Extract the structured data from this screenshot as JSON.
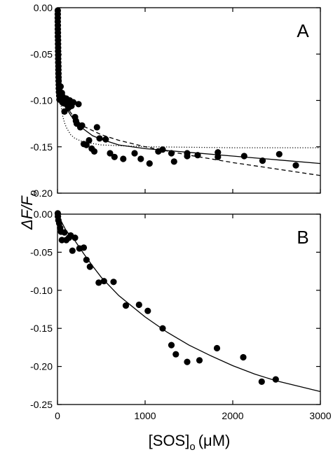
{
  "chart_data": [
    {
      "type": "scatter",
      "panel_label": "A",
      "xlim": [
        0,
        3000
      ],
      "ylim": [
        -0.2,
        0.0
      ],
      "x_ticks": [
        0,
        1000,
        2000,
        3000
      ],
      "y_ticks": [
        0.0,
        -0.05,
        -0.1,
        -0.15,
        -0.2
      ],
      "y_tick_labels": [
        "0.00",
        "-0.05",
        "-0.10",
        "-0.15",
        "-0.20"
      ],
      "x_tick_labels_shown": false,
      "series": [
        {
          "marker": "filled-circle",
          "points": [
            [
              3,
              -0.003
            ],
            [
              3,
              -0.007
            ],
            [
              3,
              -0.011
            ],
            [
              3,
              -0.015
            ],
            [
              4,
              -0.019
            ],
            [
              4,
              -0.023
            ],
            [
              5,
              -0.027
            ],
            [
              5,
              -0.031
            ],
            [
              6,
              -0.035
            ],
            [
              6,
              -0.039
            ],
            [
              7,
              -0.043
            ],
            [
              7,
              -0.047
            ],
            [
              8,
              -0.051
            ],
            [
              8,
              -0.055
            ],
            [
              9,
              -0.059
            ],
            [
              10,
              -0.063
            ],
            [
              10,
              -0.067
            ],
            [
              11,
              -0.071
            ],
            [
              12,
              -0.075
            ],
            [
              13,
              -0.079
            ],
            [
              14,
              -0.083
            ],
            [
              15,
              -0.087
            ],
            [
              17,
              -0.091
            ],
            [
              20,
              -0.095
            ],
            [
              22,
              -0.099
            ],
            [
              25,
              -0.09
            ],
            [
              30,
              -0.094
            ],
            [
              35,
              -0.085
            ],
            [
              40,
              -0.097
            ],
            [
              45,
              -0.1
            ],
            [
              50,
              -0.092
            ],
            [
              55,
              -0.102
            ],
            [
              60,
              -0.096
            ],
            [
              70,
              -0.103
            ],
            [
              80,
              -0.112
            ],
            [
              90,
              -0.103
            ],
            [
              100,
              -0.098
            ],
            [
              110,
              -0.105
            ],
            [
              125,
              -0.108
            ],
            [
              140,
              -0.1
            ],
            [
              160,
              -0.106
            ],
            [
              180,
              -0.102
            ],
            [
              200,
              -0.118
            ],
            [
              210,
              -0.122
            ],
            [
              220,
              -0.125
            ],
            [
              240,
              -0.104
            ],
            [
              260,
              -0.129
            ],
            [
              280,
              -0.127
            ],
            [
              300,
              -0.147
            ],
            [
              330,
              -0.148
            ],
            [
              360,
              -0.143
            ],
            [
              390,
              -0.152
            ],
            [
              420,
              -0.155
            ],
            [
              450,
              -0.129
            ],
            [
              480,
              -0.141
            ],
            [
              550,
              -0.142
            ],
            [
              600,
              -0.157
            ],
            [
              650,
              -0.161
            ],
            [
              750,
              -0.163
            ],
            [
              880,
              -0.157
            ],
            [
              950,
              -0.163
            ],
            [
              1050,
              -0.168
            ],
            [
              1150,
              -0.155
            ],
            [
              1200,
              -0.153
            ],
            [
              1300,
              -0.157
            ],
            [
              1330,
              -0.166
            ],
            [
              1480,
              -0.157
            ],
            [
              1480,
              -0.16
            ],
            [
              1600,
              -0.159
            ],
            [
              1830,
              -0.156
            ],
            [
              1830,
              -0.161
            ],
            [
              2130,
              -0.16
            ],
            [
              2340,
              -0.165
            ],
            [
              2530,
              -0.158
            ],
            [
              2720,
              -0.17
            ]
          ]
        }
      ],
      "fits": [
        {
          "style": "solid",
          "points": [
            [
              0,
              0.0
            ],
            [
              10,
              -0.047
            ],
            [
              20,
              -0.07
            ],
            [
              40,
              -0.089
            ],
            [
              70,
              -0.101
            ],
            [
              100,
              -0.108
            ],
            [
              150,
              -0.116
            ],
            [
              200,
              -0.122
            ],
            [
              300,
              -0.131
            ],
            [
              400,
              -0.138
            ],
            [
              500,
              -0.142
            ],
            [
              700,
              -0.148
            ],
            [
              1000,
              -0.152
            ],
            [
              1500,
              -0.156
            ],
            [
              2000,
              -0.16
            ],
            [
              2500,
              -0.164
            ],
            [
              3000,
              -0.168
            ]
          ]
        },
        {
          "style": "dashed",
          "points": [
            [
              0,
              0.0
            ],
            [
              20,
              -0.058
            ],
            [
              50,
              -0.087
            ],
            [
              100,
              -0.106
            ],
            [
              200,
              -0.12
            ],
            [
              300,
              -0.128
            ],
            [
              500,
              -0.137
            ],
            [
              700,
              -0.143
            ],
            [
              1000,
              -0.15
            ],
            [
              1500,
              -0.159
            ],
            [
              2000,
              -0.167
            ],
            [
              2500,
              -0.174
            ],
            [
              3000,
              -0.181
            ]
          ]
        },
        {
          "style": "dotted",
          "points": [
            [
              0,
              0.0
            ],
            [
              10,
              -0.054
            ],
            [
              20,
              -0.081
            ],
            [
              40,
              -0.105
            ],
            [
              60,
              -0.117
            ],
            [
              80,
              -0.124
            ],
            [
              100,
              -0.129
            ],
            [
              150,
              -0.137
            ],
            [
              200,
              -0.141
            ],
            [
              300,
              -0.145
            ],
            [
              500,
              -0.148
            ],
            [
              1000,
              -0.15
            ],
            [
              2000,
              -0.151
            ],
            [
              3000,
              -0.151
            ]
          ]
        }
      ]
    },
    {
      "type": "scatter",
      "panel_label": "B",
      "xlim": [
        0,
        3000
      ],
      "ylim": [
        -0.25,
        0.0
      ],
      "x_ticks": [
        0,
        1000,
        2000,
        3000
      ],
      "x_tick_labels": [
        "0",
        "1000",
        "2000",
        "3000"
      ],
      "y_ticks": [
        0.0,
        -0.05,
        -0.1,
        -0.15,
        -0.2,
        -0.25
      ],
      "y_tick_labels": [
        "0.00",
        "-0.05",
        "-0.10",
        "-0.15",
        "-0.20",
        "-0.25"
      ],
      "series": [
        {
          "marker": "filled-circle",
          "points": [
            [
              3,
              0.001
            ],
            [
              5,
              -0.003
            ],
            [
              10,
              -0.008
            ],
            [
              20,
              -0.012
            ],
            [
              30,
              -0.018
            ],
            [
              40,
              -0.023
            ],
            [
              50,
              -0.034
            ],
            [
              80,
              -0.024
            ],
            [
              100,
              -0.034
            ],
            [
              130,
              -0.031
            ],
            [
              150,
              -0.028
            ],
            [
              170,
              -0.048
            ],
            [
              200,
              -0.031
            ],
            [
              250,
              -0.045
            ],
            [
              300,
              -0.044
            ],
            [
              330,
              -0.06
            ],
            [
              370,
              -0.069
            ],
            [
              470,
              -0.09
            ],
            [
              530,
              -0.088
            ],
            [
              640,
              -0.089
            ],
            [
              780,
              -0.12
            ],
            [
              930,
              -0.119
            ],
            [
              1030,
              -0.127
            ],
            [
              1200,
              -0.15
            ],
            [
              1300,
              -0.172
            ],
            [
              1350,
              -0.184
            ],
            [
              1480,
              -0.194
            ],
            [
              1620,
              -0.192
            ],
            [
              1820,
              -0.176
            ],
            [
              2120,
              -0.188
            ],
            [
              2330,
              -0.22
            ],
            [
              2490,
              -0.217
            ]
          ]
        }
      ],
      "fits": [
        {
          "style": "solid",
          "points": [
            [
              0,
              0.0
            ],
            [
              100,
              -0.022
            ],
            [
              200,
              -0.035
            ],
            [
              300,
              -0.052
            ],
            [
              400,
              -0.068
            ],
            [
              500,
              -0.083
            ],
            [
              700,
              -0.107
            ],
            [
              1000,
              -0.135
            ],
            [
              1250,
              -0.155
            ],
            [
              1500,
              -0.172
            ],
            [
              1750,
              -0.186
            ],
            [
              2000,
              -0.199
            ],
            [
              2250,
              -0.21
            ],
            [
              2500,
              -0.219
            ],
            [
              2750,
              -0.226
            ],
            [
              3000,
              -0.233
            ]
          ]
        }
      ]
    }
  ],
  "shared_axes": {
    "y_title_prefix": "ΔF/F",
    "y_title_subscript": "o",
    "x_title_main": "[SOS]",
    "x_title_subscript": "o",
    "x_title_unit": "(μM)"
  }
}
